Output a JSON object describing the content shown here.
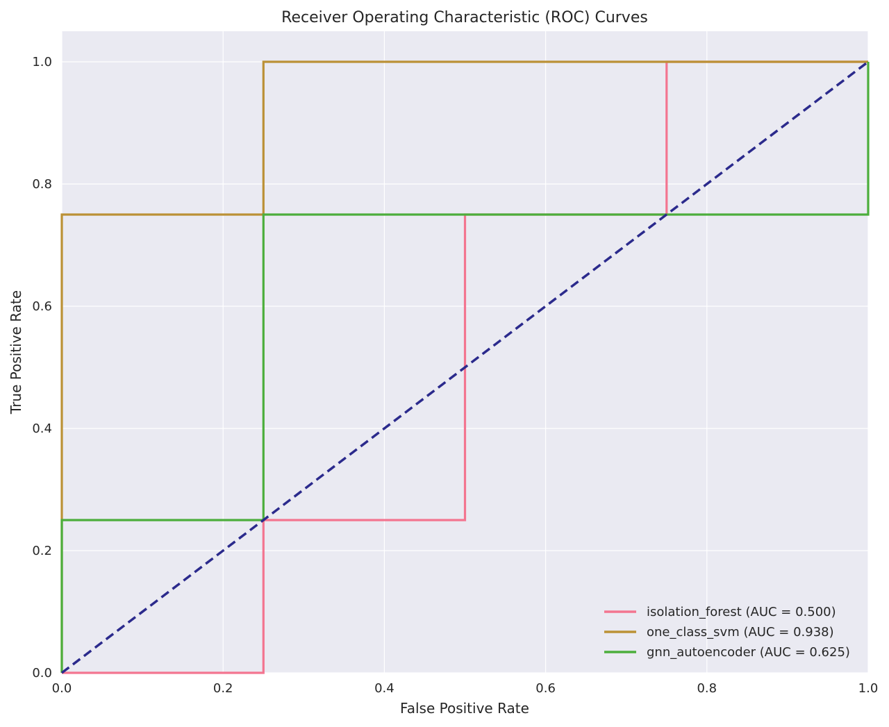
{
  "chart_data": {
    "type": "line",
    "title": "Receiver Operating Characteristic (ROC) Curves",
    "xlabel": "False Positive Rate",
    "ylabel": "True Positive Rate",
    "xlim": [
      0.0,
      1.0
    ],
    "ylim": [
      0.0,
      1.05
    ],
    "x_ticks": [
      "0.0",
      "0.2",
      "0.4",
      "0.6",
      "0.8",
      "1.0"
    ],
    "y_ticks": [
      "0.0",
      "0.2",
      "0.4",
      "0.6",
      "0.8",
      "1.0"
    ],
    "grid": true,
    "legend_position": "bottom-right",
    "series": [
      {
        "name": "isolation_forest (AUC = 0.500)",
        "color": "#f37590",
        "x": [
          0.0,
          0.25,
          0.25,
          0.5,
          0.5,
          0.75,
          0.75,
          1.0
        ],
        "y": [
          0.0,
          0.0,
          0.25,
          0.25,
          0.75,
          0.75,
          1.0,
          1.0
        ]
      },
      {
        "name": "one_class_svm (AUC = 0.938)",
        "color": "#bb9136",
        "x": [
          0.0,
          0.0,
          0.25,
          0.25,
          1.0
        ],
        "y": [
          0.0,
          0.75,
          0.75,
          1.0,
          1.0
        ]
      },
      {
        "name": "gnn_autoencoder (AUC = 0.625)",
        "color": "#4cae3c",
        "x": [
          0.0,
          0.0,
          0.25,
          0.25,
          1.0,
          1.0
        ],
        "y": [
          0.0,
          0.25,
          0.25,
          0.75,
          0.75,
          1.0
        ]
      }
    ],
    "reference_line": {
      "color": "#2b2a8c",
      "style": "dashed",
      "x": [
        0.0,
        1.0
      ],
      "y": [
        0.0,
        1.0
      ]
    },
    "colors": {
      "plot_background": "#eaeaf2",
      "grid": "#ffffff"
    }
  }
}
